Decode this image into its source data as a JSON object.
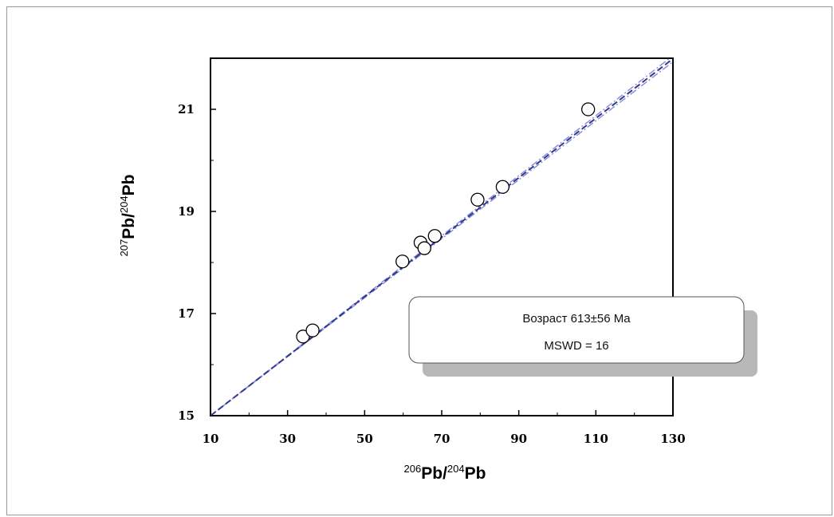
{
  "chart_data": {
    "type": "scatter",
    "xlabel": {
      "mass_num": "206",
      "element": "Pb",
      "sep": "/",
      "mass_num2": "204",
      "element2": "Pb"
    },
    "ylabel": {
      "mass_num": "207",
      "element": "Pb",
      "sep": "/",
      "mass_num2": "204",
      "element2": "Pb"
    },
    "xlim": [
      10,
      130
    ],
    "ylim": [
      15,
      22
    ],
    "x_ticks": [
      10,
      30,
      50,
      70,
      90,
      110,
      130
    ],
    "x_minor_ticks": [
      20,
      40,
      60,
      80,
      100,
      120
    ],
    "y_ticks": [
      15,
      17,
      19,
      21
    ],
    "y_minor_ticks": [
      16,
      18,
      20
    ],
    "points": [
      {
        "x": 34.0,
        "y": 16.55
      },
      {
        "x": 36.5,
        "y": 16.67
      },
      {
        "x": 59.8,
        "y": 18.02
      },
      {
        "x": 64.5,
        "y": 18.39
      },
      {
        "x": 65.5,
        "y": 18.28
      },
      {
        "x": 68.2,
        "y": 18.52
      },
      {
        "x": 79.3,
        "y": 19.23
      },
      {
        "x": 85.8,
        "y": 19.48
      },
      {
        "x": 108.0,
        "y": 21.0
      }
    ],
    "fit_line": {
      "x": [
        10,
        130
      ],
      "y": [
        15.0,
        21.99
      ]
    },
    "envelope_lines": [
      {
        "x": [
          10,
          130
        ],
        "y": [
          15.0,
          22.05
        ]
      },
      {
        "x": [
          10,
          130
        ],
        "y": [
          15.0,
          21.93
        ]
      }
    ],
    "annotation": {
      "line1": "Возраст 613±56 Ma",
      "line2": "MSWD = 16"
    },
    "colors": {
      "fit_line": "#2f3a8f",
      "envelope": "#8a8ad8",
      "marker_edge": "#000000",
      "marker_fill": "#ffffff",
      "box_shadow": "#b8b8b8"
    }
  }
}
